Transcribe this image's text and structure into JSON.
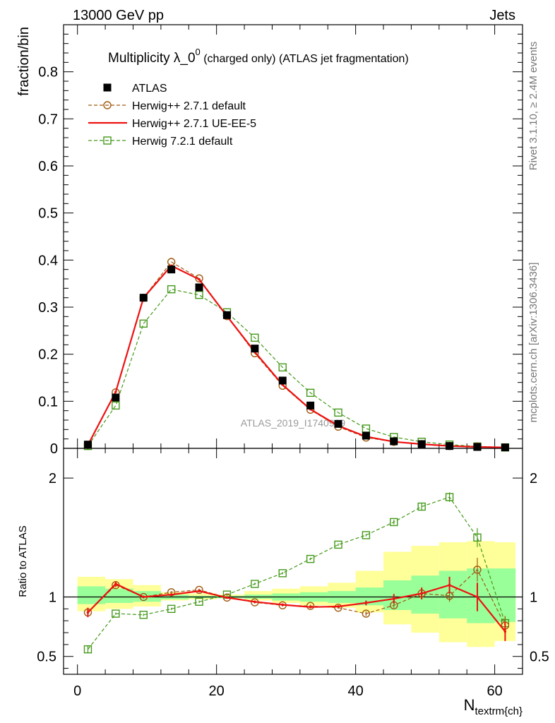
{
  "header": {
    "left": "13000 GeV pp",
    "right": "Jets"
  },
  "side_labels": {
    "rivet": "Rivet 3.1.10, ≥ 2.4M events",
    "mcplots": "mcplots.cern.ch [arXiv:1306.3436]"
  },
  "watermark": "ATLAS_2019_I1740909",
  "chart_data": [
    {
      "type": "line",
      "panel": "main",
      "title": "Multiplicity λ_0",
      "title_sup": "0",
      "title_suffix": " (charged only) (ATLAS jet fragmentation)",
      "ylabel": "fraction/bin",
      "xlabel_main": "N",
      "xlabel_sub": "textrm{ch}",
      "xlim": [
        -2,
        64
      ],
      "ylim": [
        0,
        0.9
      ],
      "yticks": [
        0,
        0.1,
        0.2,
        0.3,
        0.4,
        0.5,
        0.6,
        0.7,
        0.8
      ],
      "ytick_labels": [
        "0",
        "0.1",
        "0.2",
        "0.3",
        "0.4",
        "0.5",
        "0.6",
        "0.7",
        "0.8"
      ],
      "x": [
        1.5,
        5.5,
        9.5,
        13.5,
        17.5,
        21.5,
        25.5,
        29.5,
        33.5,
        37.5,
        41.5,
        45.5,
        49.5,
        53.5,
        57.5,
        61.5
      ],
      "legend_position": "top-left",
      "series": [
        {
          "name": "ATLAS",
          "style": "data-square",
          "color": "#000000",
          "values": [
            0.008,
            0.108,
            0.32,
            0.38,
            0.342,
            0.283,
            0.212,
            0.144,
            0.091,
            0.052,
            0.027,
            0.015,
            0.009,
            0.005,
            0.003,
            0.002
          ]
        },
        {
          "name": "Herwig++ 2.7.1 default",
          "style": "dashed-circle",
          "color": "#a05a10",
          "values": [
            0.007,
            0.119,
            0.32,
            0.396,
            0.361,
            0.281,
            0.202,
            0.133,
            0.082,
            0.046,
            0.023,
            0.014,
            0.009,
            0.005,
            0.004,
            0.002
          ]
        },
        {
          "name": "Herwig++ 2.7.1 UE-EE-5",
          "style": "solid",
          "color": "#ee1111",
          "values": [
            0.007,
            0.12,
            0.32,
            0.388,
            0.359,
            0.281,
            0.205,
            0.135,
            0.083,
            0.048,
            0.025,
            0.014,
            0.009,
            0.005,
            0.003,
            0.002
          ]
        },
        {
          "name": "Herwig 7.2.1 default",
          "style": "dashed-square",
          "color": "#44991a",
          "values": [
            0.005,
            0.091,
            0.265,
            0.338,
            0.326,
            0.289,
            0.235,
            0.172,
            0.118,
            0.076,
            0.042,
            0.024,
            0.014,
            0.008,
            0.004,
            0.002
          ]
        }
      ]
    },
    {
      "type": "line",
      "panel": "ratio",
      "ylabel": "Ratio to ATLAS",
      "xlim": [
        -2,
        64
      ],
      "ylim": [
        0.35,
        2.25
      ],
      "yticks": [
        0.5,
        1,
        2
      ],
      "ytick_labels": [
        "0.5",
        "1",
        "2"
      ],
      "xticks": [
        0,
        20,
        40,
        60
      ],
      "xtick_labels": [
        "0",
        "20",
        "40",
        "60"
      ],
      "x": [
        1.5,
        5.5,
        9.5,
        13.5,
        17.5,
        21.5,
        25.5,
        29.5,
        33.5,
        37.5,
        41.5,
        45.5,
        49.5,
        53.5,
        57.5,
        61.5
      ],
      "bin_edges": [
        0,
        4,
        8,
        12,
        16,
        20,
        24,
        28,
        32,
        36,
        40,
        44,
        48,
        52,
        56,
        60,
        63
      ],
      "band_yellow": [
        [
          0.88,
          1.17
        ],
        [
          0.9,
          1.15
        ],
        [
          0.92,
          1.1
        ],
        [
          0.97,
          1.04
        ],
        [
          0.98,
          1.03
        ],
        [
          0.99,
          1.02
        ],
        [
          0.97,
          1.05
        ],
        [
          0.95,
          1.07
        ],
        [
          0.93,
          1.09
        ],
        [
          0.91,
          1.12
        ],
        [
          0.87,
          1.22
        ],
        [
          0.77,
          1.38
        ],
        [
          0.7,
          1.43
        ],
        [
          0.62,
          1.46
        ],
        [
          0.58,
          1.47
        ],
        [
          0.63,
          1.46
        ]
      ],
      "band_green": [
        [
          0.94,
          1.09
        ],
        [
          0.95,
          1.07
        ],
        [
          0.96,
          1.05
        ],
        [
          0.98,
          1.02
        ],
        [
          0.99,
          1.01
        ],
        [
          0.99,
          1.01
        ],
        [
          0.985,
          1.02
        ],
        [
          0.97,
          1.03
        ],
        [
          0.96,
          1.04
        ],
        [
          0.95,
          1.05
        ],
        [
          0.93,
          1.08
        ],
        [
          0.89,
          1.14
        ],
        [
          0.86,
          1.18
        ],
        [
          0.82,
          1.22
        ],
        [
          0.78,
          1.24
        ],
        [
          0.79,
          1.24
        ]
      ],
      "series": [
        {
          "name": "Herwig++ 2.7.1 default",
          "style": "dashed-circle",
          "color": "#a05a10",
          "values": [
            0.87,
            1.1,
            1.0,
            1.04,
            1.06,
            0.995,
            0.955,
            0.93,
            0.925,
            0.91,
            0.86,
            0.93,
            1.03,
            1.01,
            1.23,
            0.76
          ],
          "errors": [
            0.03,
            0.02,
            0.01,
            0.01,
            0.01,
            0.01,
            0.01,
            0.01,
            0.01,
            0.01,
            0.02,
            0.02,
            0.03,
            0.05,
            0.1,
            0.08
          ]
        },
        {
          "name": "Herwig++ 2.7.1 UE-EE-5",
          "style": "solid",
          "color": "#ee1111",
          "values": [
            0.87,
            1.11,
            1.0,
            1.02,
            1.05,
            0.995,
            0.96,
            0.935,
            0.915,
            0.92,
            0.95,
            0.985,
            1.03,
            1.1,
            1.0,
            0.71
          ],
          "errors": [
            0.04,
            0.02,
            0.01,
            0.01,
            0.01,
            0.01,
            0.01,
            0.01,
            0.01,
            0.01,
            0.02,
            0.04,
            0.05,
            0.07,
            0.12,
            0.08
          ]
        },
        {
          "name": "Herwig 7.2.1 default",
          "style": "dashed-square",
          "color": "#44991a",
          "values": [
            0.56,
            0.86,
            0.85,
            0.9,
            0.96,
            1.02,
            1.11,
            1.2,
            1.32,
            1.44,
            1.52,
            1.63,
            1.76,
            1.84,
            1.5,
            0.78
          ],
          "errors": [
            0.03,
            0.01,
            0.01,
            0.01,
            0.01,
            0.01,
            0.01,
            0.01,
            0.01,
            0.01,
            0.01,
            0.02,
            0.03,
            0.04,
            0.08,
            0.06
          ]
        }
      ]
    }
  ]
}
